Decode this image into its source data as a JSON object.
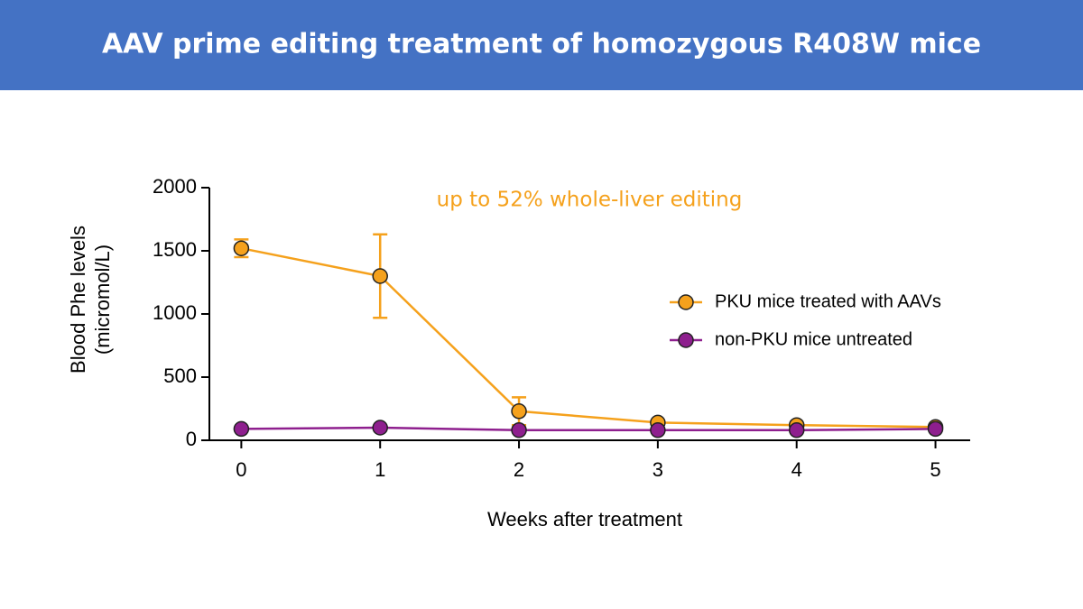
{
  "chart_data": {
    "type": "line",
    "title": "AAV prime editing treatment of homozygous R408W mice",
    "annotation": "up to 52% whole-liver editing",
    "xlabel": "Weeks after treatment",
    "ylabel": [
      "Blood Phe levels",
      "(micromol/L)"
    ],
    "x": [
      0,
      1,
      2,
      3,
      4,
      5
    ],
    "xlim": [
      -0.23,
      5.25
    ],
    "xticks": [
      0,
      1,
      2,
      3,
      4,
      5
    ],
    "ylim": [
      0,
      2000
    ],
    "yticks": [
      0,
      500,
      1000,
      1500,
      2000
    ],
    "grid": false,
    "legend": "right",
    "series": [
      {
        "name": "PKU mice treated with AAVs",
        "color": "#f5a11c",
        "values": [
          1520,
          1300,
          230,
          140,
          120,
          105
        ],
        "errors": [
          70,
          330,
          110,
          null,
          null,
          null
        ]
      },
      {
        "name": "non-PKU mice untreated",
        "color": "#8e1f8e",
        "values": [
          90,
          100,
          80,
          80,
          80,
          90
        ]
      }
    ]
  }
}
